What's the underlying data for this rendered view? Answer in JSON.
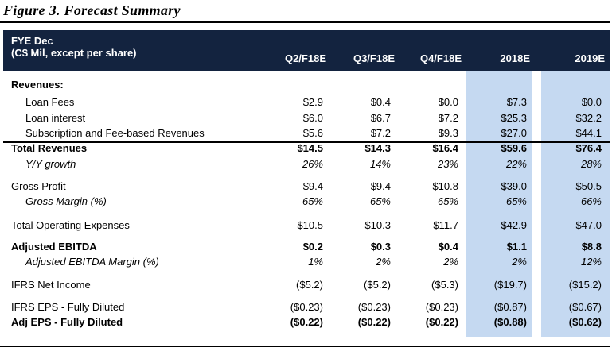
{
  "title": "Figure 3. Forecast Summary",
  "header": {
    "line1": "FYE Dec",
    "line2": "(C$ Mil, except per share)",
    "columns": [
      "Q2/F18E",
      "Q3/F18E",
      "Q4/F18E",
      "2018E",
      "2019E"
    ]
  },
  "rows": [
    {
      "label": "Revenues:",
      "values": [],
      "bold": false,
      "italic": false
    },
    {
      "label": "Loan Fees",
      "values": [
        "$2.9",
        "$0.4",
        "$0.0",
        "$7.3",
        "$0.0"
      ]
    },
    {
      "label": "Loan interest",
      "values": [
        "$6.0",
        "$6.7",
        "$7.2",
        "$25.3",
        "$32.2"
      ]
    },
    {
      "label": "Subscription and Fee-based Revenues",
      "values": [
        "$5.6",
        "$7.2",
        "$9.3",
        "$27.0",
        "$44.1"
      ]
    },
    {
      "label": "Total Revenues",
      "values": [
        "$14.5",
        "$14.3",
        "$16.4",
        "$59.6",
        "$76.4"
      ]
    },
    {
      "label": "Y/Y growth",
      "values": [
        "26%",
        "14%",
        "23%",
        "22%",
        "28%"
      ]
    },
    {
      "label": "Gross Profit",
      "values": [
        "$9.4",
        "$9.4",
        "$10.8",
        "$39.0",
        "$50.5"
      ]
    },
    {
      "label": "Gross Margin (%)",
      "values": [
        "65%",
        "65%",
        "65%",
        "65%",
        "66%"
      ]
    },
    {
      "label": "Total Operating Expenses",
      "values": [
        "$10.5",
        "$10.3",
        "$11.7",
        "$42.9",
        "$47.0"
      ]
    },
    {
      "label": "Adjusted EBITDA",
      "values": [
        "$0.2",
        "$0.3",
        "$0.4",
        "$1.1",
        "$8.8"
      ]
    },
    {
      "label": "Adjusted EBITDA Margin (%)",
      "values": [
        "1%",
        "2%",
        "2%",
        "2%",
        "12%"
      ]
    },
    {
      "label": "IFRS Net Income",
      "values": [
        "($5.2)",
        "($5.2)",
        "($5.3)",
        "($19.7)",
        "($15.2)"
      ]
    },
    {
      "label": "IFRS EPS - Fully Diluted",
      "values": [
        "($0.23)",
        "($0.23)",
        "($0.23)",
        "($0.87)",
        "($0.67)"
      ]
    },
    {
      "label": "Adj EPS - Fully Diluted",
      "values": [
        "($0.22)",
        "($0.22)",
        "($0.22)",
        "($0.88)",
        "($0.62)"
      ]
    }
  ],
  "colors": {
    "header_bg": "#13233f",
    "header_text": "#ffffff",
    "highlight": "#c5d9f1"
  }
}
